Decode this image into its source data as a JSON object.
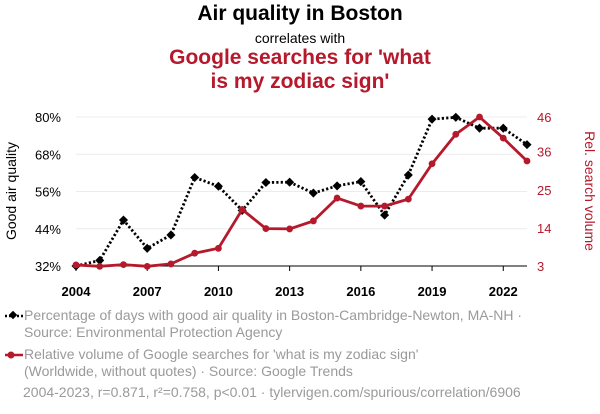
{
  "header": {
    "title": "Air quality in Boston",
    "subtitle": "correlates with",
    "title2_line1": "Google searches for 'what",
    "title2_line2": "is my zodiac sign'"
  },
  "legend": {
    "series1_line1": "Percentage of days with good air quality in Boston-Cambridge-Newton, MA-NH ·",
    "series1_line2": "Source: Environmental Protection Agency",
    "series2_line1": "Relative volume of Google searches for 'what is my zodiac sign'",
    "series2_line2": "(Worldwide, without quotes) · Source: Google Trends"
  },
  "footer": "2004-2023, r=0.871, r²=0.758, p<0.01 · tylervigen.com/spurious/correlation/6906",
  "chart_data": {
    "type": "line",
    "x": [
      2004,
      2005,
      2006,
      2007,
      2008,
      2009,
      2010,
      2011,
      2012,
      2013,
      2014,
      2015,
      2016,
      2017,
      2018,
      2019,
      2020,
      2021,
      2022,
      2023
    ],
    "xticks": [
      2004,
      2007,
      2010,
      2013,
      2016,
      2019,
      2022
    ],
    "xlim": [
      2004,
      2023
    ],
    "ylabel": "Good air quality",
    "y2label": "Rel. search volume",
    "ylim": [
      32,
      80
    ],
    "yticks": [
      "32%",
      "44%",
      "56%",
      "68%",
      "80%"
    ],
    "yticks_values": [
      32,
      44,
      56,
      68,
      80
    ],
    "y2lim": [
      3,
      46
    ],
    "y2ticks": [
      3,
      14,
      25,
      36,
      46
    ],
    "grid": true,
    "series": [
      {
        "axis": "left",
        "color": "#000000",
        "style": "dotted",
        "marker": "diamond",
        "values": [
          32.0,
          33.8,
          46.8,
          37.7,
          42.0,
          60.5,
          57.7,
          49.9,
          58.9,
          59.0,
          55.5,
          57.8,
          59.2,
          48.4,
          61.3,
          79.3,
          79.9,
          76.4,
          76.4,
          71.1
        ]
      },
      {
        "axis": "right",
        "color": "#b5192b",
        "style": "solid",
        "marker": "circle",
        "values": [
          3.3,
          2.9,
          3.4,
          2.9,
          3.6,
          6.7,
          8.1,
          19.3,
          13.8,
          13.7,
          16.0,
          22.6,
          20.3,
          20.3,
          22.3,
          32.5,
          41.0,
          46.0,
          39.9,
          33.3
        ]
      }
    ]
  }
}
